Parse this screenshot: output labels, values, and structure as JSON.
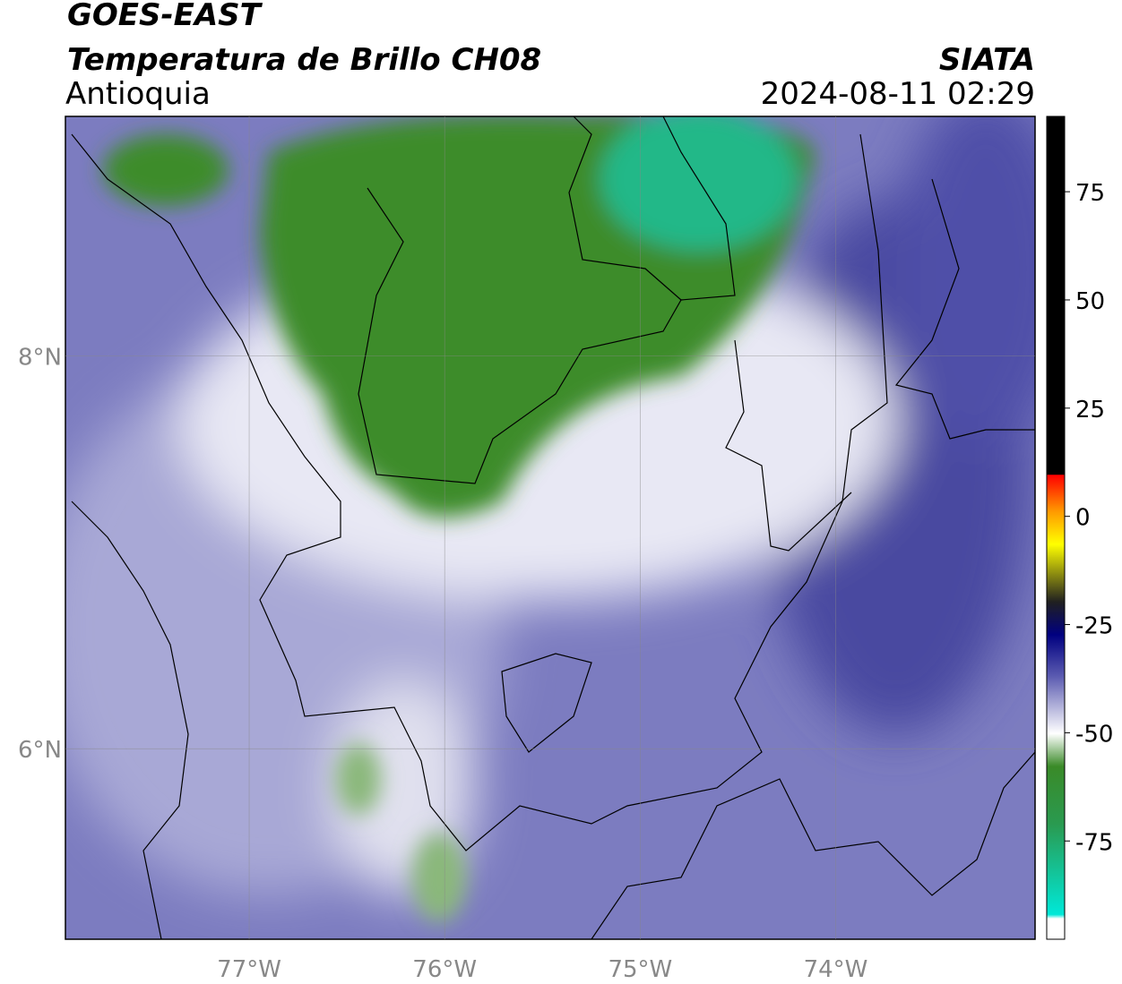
{
  "header": {
    "source": "GOES-EAST",
    "product": "Temperatura de Brillo CH08",
    "region": "Antioquia",
    "agency": "SIATA",
    "datetime": "2024-08-11 02:29"
  },
  "map": {
    "xlim": [
      -77.94,
      -72.98
    ],
    "ylim": [
      5.03,
      9.22
    ],
    "xticks": [
      {
        "value": -77,
        "label": "77°W"
      },
      {
        "value": -76,
        "label": "76°W"
      },
      {
        "value": -75,
        "label": "75°W"
      },
      {
        "value": -74,
        "label": "74°W"
      }
    ],
    "yticks": [
      {
        "value": 6,
        "label": "6°N"
      },
      {
        "value": 8,
        "label": "8°N"
      }
    ],
    "grid": true
  },
  "colorbar": {
    "lim": [
      -97.7,
      92.4
    ],
    "ticks": [
      75,
      50,
      25,
      0,
      -25,
      -50,
      -75
    ]
  }
}
